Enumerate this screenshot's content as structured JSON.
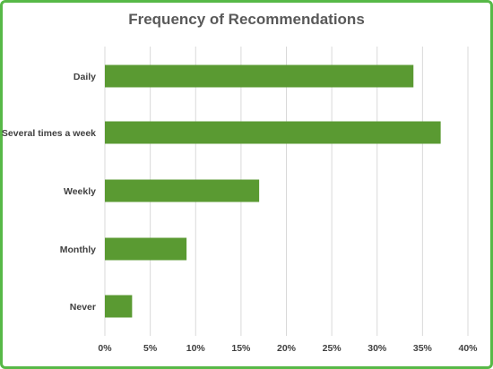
{
  "chart_data": {
    "type": "bar",
    "orientation": "horizontal",
    "title": "Frequency of Recommendations",
    "categories": [
      "Daily",
      "Several times a week",
      "Weekly",
      "Monthly",
      "Never"
    ],
    "values": [
      34,
      37,
      17,
      9,
      3
    ],
    "xlabel": "",
    "ylabel": "",
    "xlim": [
      0,
      40
    ],
    "ticks": [
      "0%",
      "5%",
      "10%",
      "15%",
      "20%",
      "25%",
      "30%",
      "35%",
      "40%"
    ],
    "grid": "vertical",
    "legend": "none",
    "colors": {
      "bar": "#5a9a32",
      "border": "#57b947",
      "grid": "#d9d9d9",
      "text": "#404040"
    }
  }
}
